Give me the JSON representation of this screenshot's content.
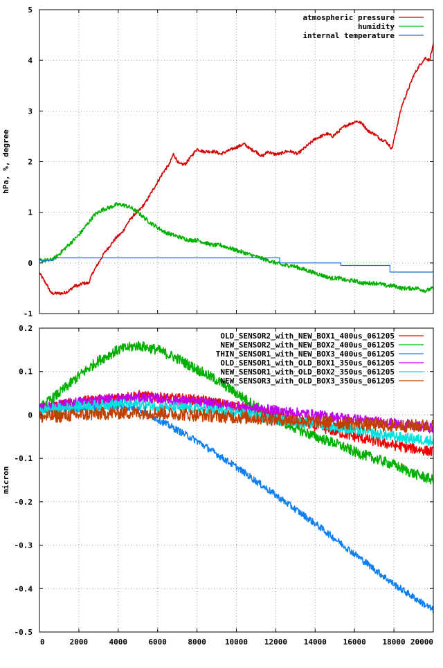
{
  "chart_data": [
    {
      "type": "line",
      "title": "",
      "xlabel": "",
      "ylabel": "hPa, %, degree",
      "xlim": [
        0,
        20000
      ],
      "ylim": [
        -1,
        5
      ],
      "xticks": [
        0,
        2000,
        4000,
        6000,
        8000,
        10000,
        12000,
        14000,
        16000,
        18000,
        20000
      ],
      "yticks": [
        -1,
        0,
        1,
        2,
        3,
        4,
        5
      ],
      "grid": true,
      "legend_position": "top-right",
      "series": [
        {
          "name": "atmospheric pressure",
          "color": "#d40000",
          "noise": 0.03,
          "x": [
            0,
            400,
            600,
            900,
            1200,
            1500,
            1800,
            2000,
            2200,
            2500,
            2700,
            3000,
            3300,
            3600,
            3900,
            4200,
            4500,
            4800,
            5100,
            5400,
            5700,
            6000,
            6300,
            6600,
            6800,
            7100,
            7400,
            7700,
            8000,
            8300,
            8600,
            8900,
            9200,
            9500,
            9800,
            10100,
            10400,
            10700,
            11000,
            11300,
            11600,
            11900,
            12200,
            12500,
            12800,
            13100,
            13400,
            13700,
            14000,
            14300,
            14600,
            14900,
            15200,
            15500,
            15800,
            16100,
            16400,
            16700,
            17000,
            17300,
            17600,
            17900,
            18100,
            18400,
            18700,
            19000,
            19300,
            19600,
            19800,
            20000
          ],
          "y": [
            -0.2,
            -0.45,
            -0.6,
            -0.6,
            -0.6,
            -0.55,
            -0.45,
            -0.45,
            -0.4,
            -0.4,
            -0.2,
            0.0,
            0.2,
            0.35,
            0.5,
            0.6,
            0.8,
            0.95,
            1.05,
            1.2,
            1.4,
            1.6,
            1.8,
            1.95,
            2.15,
            1.95,
            1.95,
            2.1,
            2.25,
            2.2,
            2.2,
            2.2,
            2.15,
            2.2,
            2.25,
            2.3,
            2.35,
            2.25,
            2.2,
            2.1,
            2.2,
            2.15,
            2.15,
            2.2,
            2.2,
            2.15,
            2.25,
            2.35,
            2.45,
            2.5,
            2.55,
            2.5,
            2.6,
            2.7,
            2.75,
            2.8,
            2.75,
            2.6,
            2.55,
            2.45,
            2.4,
            2.25,
            2.6,
            3.1,
            3.4,
            3.7,
            3.9,
            4.05,
            4.0,
            4.3
          ]
        },
        {
          "name": "humidity",
          "color": "#00b000",
          "noise": 0.04,
          "x": [
            0,
            500,
            800,
            1200,
            1600,
            2000,
            2400,
            2800,
            3200,
            3600,
            3900,
            4200,
            4600,
            5000,
            5300,
            5600,
            6000,
            6400,
            6800,
            7200,
            7600,
            8000,
            8400,
            8800,
            9200,
            9600,
            10000,
            10400,
            10800,
            11200,
            11600,
            12000,
            12400,
            12800,
            13200,
            13600,
            14000,
            14400,
            14800,
            15200,
            15600,
            16000,
            16400,
            16800,
            17200,
            17600,
            18000,
            18400,
            18800,
            19200,
            19600,
            20000
          ],
          "y": [
            0.05,
            0.05,
            0.1,
            0.25,
            0.4,
            0.55,
            0.75,
            0.95,
            1.05,
            1.1,
            1.15,
            1.15,
            1.1,
            1.0,
            0.9,
            0.8,
            0.7,
            0.6,
            0.55,
            0.5,
            0.45,
            0.45,
            0.4,
            0.35,
            0.35,
            0.3,
            0.25,
            0.2,
            0.15,
            0.1,
            0.05,
            0.0,
            -0.05,
            -0.05,
            -0.1,
            -0.15,
            -0.2,
            -0.25,
            -0.3,
            -0.3,
            -0.35,
            -0.35,
            -0.4,
            -0.4,
            -0.4,
            -0.45,
            -0.45,
            -0.5,
            -0.5,
            -0.5,
            -0.55,
            -0.5
          ]
        },
        {
          "name": "internal temperature",
          "color": "#0070f0",
          "noise": 0.0,
          "x": [
            0,
            700,
            700.001,
            12200,
            12200.001,
            15300,
            15300.001,
            17800,
            17800.001,
            20000
          ],
          "y": [
            0.05,
            0.05,
            0.1,
            0.1,
            0.0,
            0.0,
            -0.05,
            -0.05,
            -0.18,
            -0.18
          ]
        }
      ]
    },
    {
      "type": "line",
      "title": "",
      "xlabel": "",
      "ylabel": "micron",
      "xlim": [
        0,
        20000
      ],
      "ylim": [
        -0.5,
        0.2
      ],
      "xticks": [
        0,
        2000,
        4000,
        6000,
        8000,
        10000,
        12000,
        14000,
        16000,
        18000,
        20000
      ],
      "yticks": [
        -0.5,
        -0.4,
        -0.3,
        -0.2,
        -0.1,
        0,
        0.1,
        0.2
      ],
      "grid": true,
      "legend_position": "top-right",
      "series": [
        {
          "name": "OLD_SENSOR2_with_NEW_BOX1_400us_061205",
          "color": "#f00000",
          "noise": 0.012,
          "x": [
            0,
            2000,
            4000,
            5000,
            6000,
            8000,
            10000,
            12000,
            14000,
            16000,
            18000,
            20000
          ],
          "y": [
            0.015,
            0.03,
            0.04,
            0.045,
            0.04,
            0.035,
            0.02,
            0.0,
            -0.025,
            -0.05,
            -0.07,
            -0.085
          ]
        },
        {
          "name": "NEW_SENSOR2_with_NEW_BOX2_400us_061205",
          "color": "#00b000",
          "noise": 0.012,
          "x": [
            0,
            1000,
            2000,
            3000,
            4000,
            5000,
            6000,
            7000,
            8000,
            9000,
            10000,
            11000,
            12000,
            13000,
            14000,
            15000,
            16000,
            17000,
            18000,
            19000,
            20000
          ],
          "y": [
            0.015,
            0.05,
            0.09,
            0.125,
            0.15,
            0.16,
            0.15,
            0.13,
            0.105,
            0.08,
            0.05,
            0.02,
            -0.01,
            -0.03,
            -0.05,
            -0.065,
            -0.085,
            -0.1,
            -0.115,
            -0.135,
            -0.15
          ]
        },
        {
          "name": "THIN_SENSOR1_with_NEW_BOX3_400us_061205",
          "color": "#1080f0",
          "noise": 0.008,
          "x": [
            0,
            2000,
            4000,
            5000,
            6000,
            8000,
            10000,
            12000,
            14000,
            16000,
            18000,
            20000
          ],
          "y": [
            0.01,
            0.015,
            0.02,
            0.015,
            -0.01,
            -0.06,
            -0.12,
            -0.185,
            -0.25,
            -0.32,
            -0.39,
            -0.45
          ]
        },
        {
          "name": "OLD_SENSOR1_with_OLD_BOX1_350us_061205",
          "color": "#c000f0",
          "noise": 0.012,
          "x": [
            0,
            2000,
            4000,
            5000,
            6000,
            8000,
            10000,
            12000,
            14000,
            16000,
            18000,
            20000
          ],
          "y": [
            0.015,
            0.03,
            0.038,
            0.04,
            0.038,
            0.03,
            0.02,
            0.01,
            0.0,
            -0.01,
            -0.02,
            -0.03
          ]
        },
        {
          "name": "NEW_SENSOR1_with_OLD_BOX2_350us_061205",
          "color": "#00e0e0",
          "noise": 0.012,
          "x": [
            0,
            2000,
            4000,
            5000,
            6000,
            8000,
            10000,
            12000,
            14000,
            16000,
            18000,
            20000
          ],
          "y": [
            0.01,
            0.02,
            0.025,
            0.025,
            0.02,
            0.015,
            0.005,
            -0.01,
            -0.02,
            -0.035,
            -0.05,
            -0.06
          ]
        },
        {
          "name": "NEW_SENSOR3_with_OLD_BOX3_350us_061205",
          "color": "#c04000",
          "noise": 0.015,
          "x": [
            0,
            2000,
            4000,
            6000,
            8000,
            10000,
            12000,
            14000,
            16000,
            18000,
            20000
          ],
          "y": [
            -0.005,
            0.0,
            0.005,
            0.005,
            0.0,
            -0.005,
            -0.01,
            -0.015,
            -0.02,
            -0.025,
            -0.025
          ]
        }
      ]
    }
  ]
}
